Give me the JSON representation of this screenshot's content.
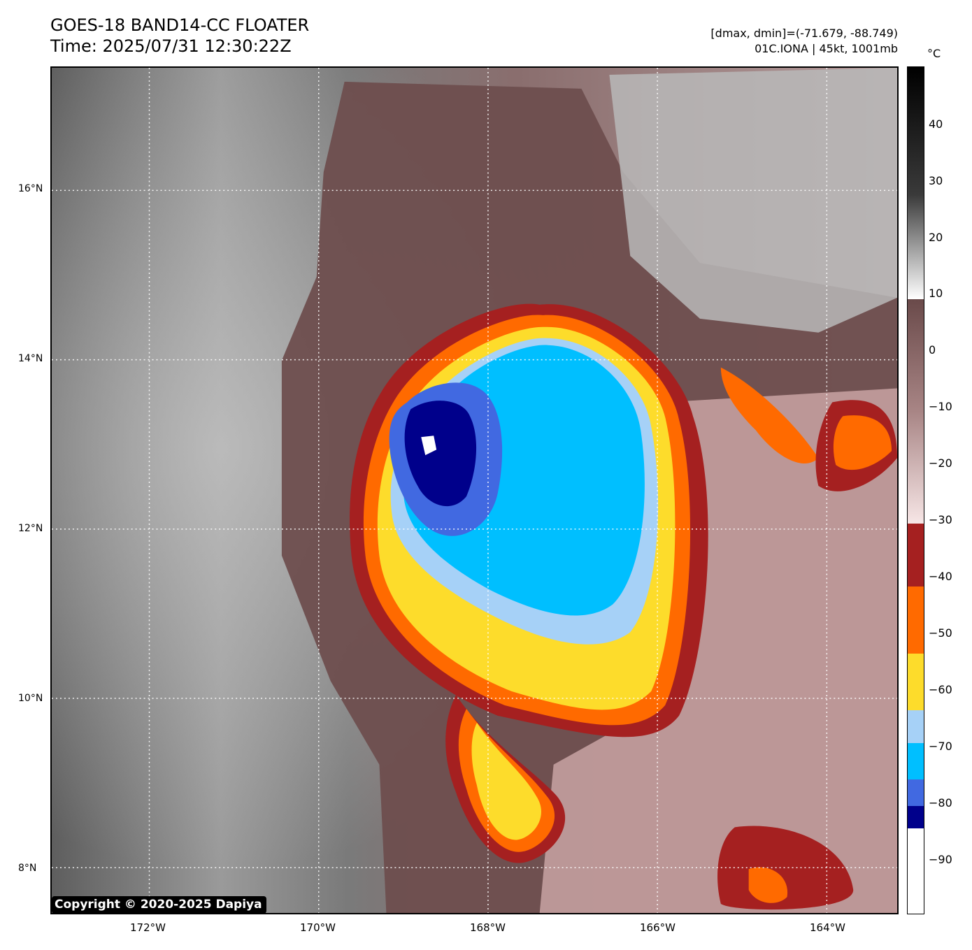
{
  "header": {
    "title_line1": "GOES-18 BAND14-CC FLOATER",
    "title_line2": "Time: 2025/07/31 12:30:22Z",
    "info_line1": "[dmax, dmin]=(-71.679, -88.749)",
    "info_line2": "01C.IONA | 45kt, 1001mb"
  },
  "map": {
    "lat_labels": [
      "16°N",
      "14°N",
      "12°N",
      "10°N",
      "8°N"
    ],
    "lon_labels": [
      "172°W",
      "170°W",
      "168°W",
      "166°W",
      "164°W"
    ],
    "copyright": "Copyright © 2020-2025 Dapiya"
  },
  "colorbar": {
    "unit": "°C",
    "ticks": [
      "40",
      "30",
      "20",
      "10",
      "0",
      "−10",
      "−20",
      "−30",
      "−40",
      "−50",
      "−60",
      "−70",
      "−80",
      "−90"
    ],
    "colors": {
      "minus90_to_minus85": "#ffffff",
      "minus85_to_minus80": "#00008b",
      "minus80_to_minus75": "#4169e1",
      "minus75_to_minus70": "#00bfff",
      "minus70_to_minus65": "#a6d1f7",
      "minus65_to_minus55": "#fddc2b",
      "minus55_to_minus43": "#ff6a00",
      "minus43_to_minus32": "#a52020"
    }
  }
}
